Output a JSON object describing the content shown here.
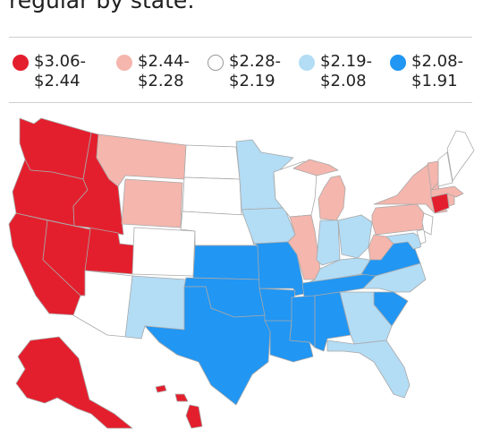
{
  "title_text": "regular by state:",
  "colors": {
    "tier1": "#e41f2d",
    "tier2": "#f4b6ad",
    "tier3": "#ffffff",
    "tier4": "#b3dcf5",
    "tier5": "#2196f3",
    "stroke": "#a9a9a9"
  },
  "legend": [
    {
      "line1": "$3.06-",
      "line2": "$2.44",
      "tier": "tier1"
    },
    {
      "line1": "$2.44-",
      "line2": "$2.28",
      "tier": "tier2"
    },
    {
      "line1": "$2.28-",
      "line2": "$2.19",
      "tier": "tier3"
    },
    {
      "line1": "$2.19-",
      "line2": "$2.08",
      "tier": "tier4"
    },
    {
      "line1": "$2.08-",
      "line2": "$1.91",
      "tier": "tier5"
    }
  ],
  "states": {
    "WA": "tier1",
    "OR": "tier1",
    "CA": "tier1",
    "NV": "tier1",
    "ID": "tier1",
    "UT": "tier1",
    "AK": "tier1",
    "HI": "tier1",
    "CT": "tier1",
    "MT": "tier2",
    "WY": "tier2",
    "IL": "tier2",
    "MI": "tier2",
    "NY": "tier2",
    "PA": "tier2",
    "WV": "tier2",
    "VT": "tier2",
    "MA": "tier2",
    "RI": "tier2",
    "AZ": "tier3",
    "CO": "tier3",
    "ND": "tier3",
    "SD": "tier3",
    "NE": "tier3",
    "WI": "tier3",
    "ME": "tier3",
    "NH": "tier3",
    "NJ": "tier3",
    "DE": "tier3",
    "NM": "tier4",
    "MN": "tier4",
    "IA": "tier4",
    "IN": "tier4",
    "OH": "tier4",
    "KY": "tier4",
    "NC": "tier4",
    "GA": "tier4",
    "FL": "tier4",
    "MD": "tier4",
    "KS": "tier5",
    "OK": "tier5",
    "TX": "tier5",
    "MO": "tier5",
    "AR": "tier5",
    "LA": "tier5",
    "MS": "tier5",
    "AL": "tier5",
    "TN": "tier5",
    "SC": "tier5",
    "VA": "tier5"
  }
}
